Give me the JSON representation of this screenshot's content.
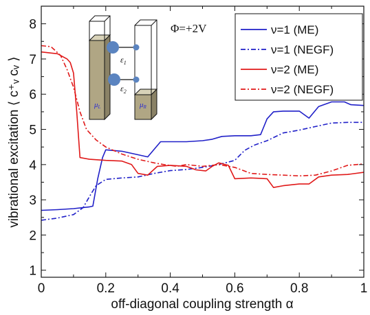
{
  "chart_data": {
    "type": "line",
    "xlabel": "off-diagonal coupling strength α",
    "ylabel": "vibrational excitation ⟨ c⁺ᵥ cᵥ ⟩",
    "xlim": [
      0,
      1
    ],
    "ylim": [
      0.8,
      8.5
    ],
    "xticks": [
      {
        "value": 0,
        "label": "0"
      },
      {
        "value": 0.2,
        "label": "0.2"
      },
      {
        "value": 0.4,
        "label": "0.4"
      },
      {
        "value": 0.6,
        "label": "0.6"
      },
      {
        "value": 0.8,
        "label": "0.8"
      },
      {
        "value": 1,
        "label": "1"
      }
    ],
    "yticks": [
      {
        "value": 1,
        "label": "1"
      },
      {
        "value": 2,
        "label": "2"
      },
      {
        "value": 3,
        "label": "3"
      },
      {
        "value": 4,
        "label": "4"
      },
      {
        "value": 5,
        "label": "5"
      },
      {
        "value": 6,
        "label": "6"
      },
      {
        "value": 7,
        "label": "7"
      },
      {
        "value": 8,
        "label": "8"
      }
    ],
    "annotation": "Φ=+2V",
    "legend_position": "top-right",
    "grid": false,
    "series": [
      {
        "name": "ν=1 (ME)",
        "color": "#1f1fc8",
        "dash": "solid",
        "points": [
          [
            0,
            2.7
          ],
          [
            0.05,
            2.72
          ],
          [
            0.1,
            2.75
          ],
          [
            0.15,
            2.8
          ],
          [
            0.16,
            2.82
          ],
          [
            0.175,
            3.6
          ],
          [
            0.19,
            4.2
          ],
          [
            0.2,
            4.42
          ],
          [
            0.25,
            4.38
          ],
          [
            0.3,
            4.28
          ],
          [
            0.33,
            4.22
          ],
          [
            0.37,
            4.65
          ],
          [
            0.4,
            4.65
          ],
          [
            0.45,
            4.65
          ],
          [
            0.5,
            4.68
          ],
          [
            0.53,
            4.72
          ],
          [
            0.56,
            4.8
          ],
          [
            0.6,
            4.82
          ],
          [
            0.65,
            4.82
          ],
          [
            0.68,
            4.85
          ],
          [
            0.7,
            5.3
          ],
          [
            0.72,
            5.5
          ],
          [
            0.75,
            5.52
          ],
          [
            0.8,
            5.52
          ],
          [
            0.83,
            5.32
          ],
          [
            0.86,
            5.65
          ],
          [
            0.9,
            5.78
          ],
          [
            0.94,
            5.78
          ],
          [
            0.96,
            5.7
          ],
          [
            1,
            5.68
          ]
        ]
      },
      {
        "name": "ν=1 (NEGF)",
        "color": "#1f1fc8",
        "dash": "dashdot",
        "points": [
          [
            0,
            2.42
          ],
          [
            0.05,
            2.48
          ],
          [
            0.1,
            2.58
          ],
          [
            0.13,
            2.78
          ],
          [
            0.15,
            3.1
          ],
          [
            0.17,
            3.4
          ],
          [
            0.2,
            3.58
          ],
          [
            0.25,
            3.62
          ],
          [
            0.3,
            3.65
          ],
          [
            0.35,
            3.75
          ],
          [
            0.4,
            3.83
          ],
          [
            0.45,
            3.86
          ],
          [
            0.5,
            3.92
          ],
          [
            0.55,
            4.0
          ],
          [
            0.6,
            4.12
          ],
          [
            0.63,
            4.4
          ],
          [
            0.66,
            4.55
          ],
          [
            0.7,
            4.68
          ],
          [
            0.75,
            4.9
          ],
          [
            0.8,
            4.98
          ],
          [
            0.85,
            5.08
          ],
          [
            0.9,
            5.18
          ],
          [
            0.95,
            5.2
          ],
          [
            1,
            5.2
          ]
        ]
      },
      {
        "name": "ν=2 (ME)",
        "color": "#e01818",
        "dash": "solid",
        "points": [
          [
            0,
            7.2
          ],
          [
            0.05,
            7.15
          ],
          [
            0.08,
            7.0
          ],
          [
            0.09,
            6.9
          ],
          [
            0.1,
            6.6
          ],
          [
            0.11,
            5.5
          ],
          [
            0.12,
            4.2
          ],
          [
            0.15,
            4.15
          ],
          [
            0.2,
            4.12
          ],
          [
            0.25,
            4.1
          ],
          [
            0.28,
            4.0
          ],
          [
            0.3,
            3.75
          ],
          [
            0.33,
            3.7
          ],
          [
            0.36,
            3.95
          ],
          [
            0.4,
            3.98
          ],
          [
            0.45,
            3.95
          ],
          [
            0.48,
            3.85
          ],
          [
            0.51,
            3.82
          ],
          [
            0.53,
            3.95
          ],
          [
            0.55,
            4.05
          ],
          [
            0.58,
            3.98
          ],
          [
            0.6,
            3.6
          ],
          [
            0.65,
            3.62
          ],
          [
            0.7,
            3.6
          ],
          [
            0.72,
            3.35
          ],
          [
            0.75,
            3.4
          ],
          [
            0.8,
            3.45
          ],
          [
            0.83,
            3.45
          ],
          [
            0.86,
            3.65
          ],
          [
            0.9,
            3.7
          ],
          [
            0.95,
            3.72
          ],
          [
            1,
            3.78
          ]
        ]
      },
      {
        "name": "ν=2 (NEGF)",
        "color": "#e01818",
        "dash": "dashdot",
        "points": [
          [
            0,
            7.38
          ],
          [
            0.03,
            7.35
          ],
          [
            0.06,
            7.1
          ],
          [
            0.08,
            6.7
          ],
          [
            0.1,
            6.2
          ],
          [
            0.12,
            5.5
          ],
          [
            0.14,
            5.0
          ],
          [
            0.17,
            4.7
          ],
          [
            0.2,
            4.5
          ],
          [
            0.25,
            4.3
          ],
          [
            0.3,
            4.15
          ],
          [
            0.35,
            4.05
          ],
          [
            0.38,
            4.0
          ],
          [
            0.42,
            3.95
          ],
          [
            0.45,
            4.0
          ],
          [
            0.5,
            3.95
          ],
          [
            0.55,
            4.0
          ],
          [
            0.6,
            3.92
          ],
          [
            0.65,
            3.75
          ],
          [
            0.7,
            3.72
          ],
          [
            0.75,
            3.7
          ],
          [
            0.8,
            3.68
          ],
          [
            0.85,
            3.7
          ],
          [
            0.9,
            3.82
          ],
          [
            0.95,
            3.98
          ],
          [
            1,
            4.02
          ]
        ]
      }
    ]
  },
  "inset": {
    "level_1": "ε",
    "level_1_sub": "1",
    "level_2": "ε",
    "level_2_sub": "2",
    "lead_left": "μ",
    "lead_left_sub": "L",
    "lead_right": "μ",
    "lead_right_sub": "R"
  }
}
